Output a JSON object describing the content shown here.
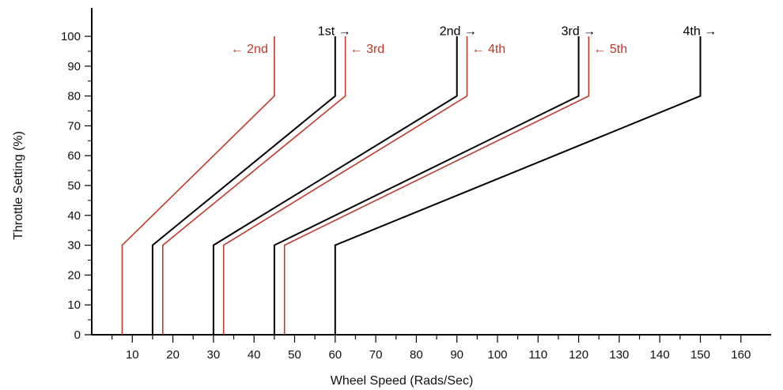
{
  "chart_data": {
    "type": "line",
    "title": "",
    "xlabel": "Wheel Speed (Rads/Sec)",
    "ylabel": "Throttle Setting (%)",
    "xlim": [
      0,
      160
    ],
    "ylim": [
      0,
      100
    ],
    "xticks": [
      10,
      20,
      30,
      40,
      50,
      60,
      70,
      80,
      90,
      100,
      110,
      120,
      130,
      140,
      150,
      160
    ],
    "yticks": [
      0,
      10,
      20,
      30,
      40,
      50,
      60,
      70,
      80,
      90,
      100
    ],
    "grid": false,
    "series": [
      {
        "color": "#c0392b",
        "points": [
          [
            7.5,
            0
          ],
          [
            7.5,
            30
          ],
          [
            45,
            80
          ],
          [
            45,
            100
          ]
        ]
      },
      {
        "color": "#000000",
        "points": [
          [
            15,
            0
          ],
          [
            15,
            30
          ],
          [
            60,
            80
          ],
          [
            60,
            100
          ]
        ]
      },
      {
        "color": "#c0392b",
        "points": [
          [
            17.5,
            0
          ],
          [
            17.5,
            30
          ],
          [
            62.5,
            80
          ],
          [
            62.5,
            100
          ]
        ]
      },
      {
        "color": "#000000",
        "points": [
          [
            30,
            0
          ],
          [
            30,
            30
          ],
          [
            90,
            80
          ],
          [
            90,
            100
          ]
        ]
      },
      {
        "color": "#c0392b",
        "points": [
          [
            32.5,
            0
          ],
          [
            32.5,
            30
          ],
          [
            92.5,
            80
          ],
          [
            92.5,
            100
          ]
        ]
      },
      {
        "color": "#000000",
        "points": [
          [
            45,
            0
          ],
          [
            45,
            30
          ],
          [
            120,
            80
          ],
          [
            120,
            100
          ]
        ]
      },
      {
        "color": "#c0392b",
        "points": [
          [
            47.5,
            0
          ],
          [
            47.5,
            30
          ],
          [
            122.5,
            80
          ],
          [
            122.5,
            100
          ]
        ]
      },
      {
        "color": "#000000",
        "points": [
          [
            60,
            0
          ],
          [
            60,
            30
          ],
          [
            150,
            80
          ],
          [
            150,
            100
          ]
        ]
      }
    ],
    "annotations": [
      {
        "text": "← 2nd",
        "color": "#c0392b",
        "x": 45,
        "y": 96,
        "side": "left"
      },
      {
        "text": "1st →",
        "color": "#000000",
        "x": 60,
        "y": 102,
        "side": "left"
      },
      {
        "text": "← 3rd",
        "color": "#c0392b",
        "x": 62.5,
        "y": 96,
        "side": "right"
      },
      {
        "text": "2nd →",
        "color": "#000000",
        "x": 90,
        "y": 102,
        "side": "left"
      },
      {
        "text": "← 4th",
        "color": "#c0392b",
        "x": 92.5,
        "y": 96,
        "side": "right"
      },
      {
        "text": "3rd →",
        "color": "#000000",
        "x": 120,
        "y": 102,
        "side": "left"
      },
      {
        "text": "← 5th",
        "color": "#c0392b",
        "x": 122.5,
        "y": 96,
        "side": "right"
      },
      {
        "text": "4th →",
        "color": "#000000",
        "x": 150,
        "y": 102,
        "side": "left"
      }
    ]
  }
}
